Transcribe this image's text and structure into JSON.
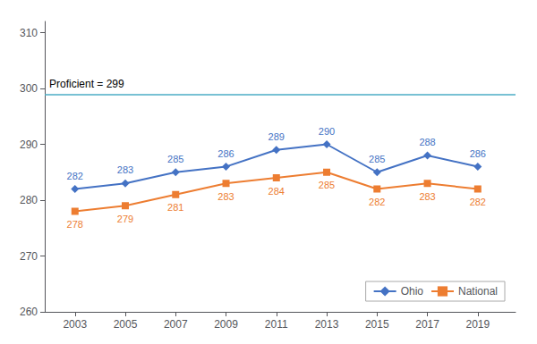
{
  "chart_data": {
    "type": "line",
    "x": [
      2003,
      2005,
      2007,
      2009,
      2011,
      2013,
      2015,
      2017,
      2019
    ],
    "series": [
      {
        "name": "Ohio",
        "color": "#4472C4",
        "marker": "diamond",
        "values": [
          282,
          283,
          285,
          286,
          289,
          290,
          285,
          288,
          286
        ]
      },
      {
        "name": "National",
        "color": "#ED7D31",
        "marker": "square",
        "values": [
          278,
          279,
          281,
          283,
          284,
          285,
          282,
          283,
          282
        ]
      }
    ],
    "xlim": [
      2001.8,
      2020.5
    ],
    "xticks": [
      2003,
      2005,
      2007,
      2009,
      2011,
      2013,
      2015,
      2017,
      2019
    ],
    "ylim": [
      260,
      312
    ],
    "yticks": [
      260,
      270,
      280,
      290,
      300,
      310
    ],
    "annotations": [
      {
        "text": "Proficient = 299",
        "y": 299,
        "color": "#4BACC6"
      }
    ],
    "grid": false,
    "legend": "lower right",
    "data_labels": true
  }
}
